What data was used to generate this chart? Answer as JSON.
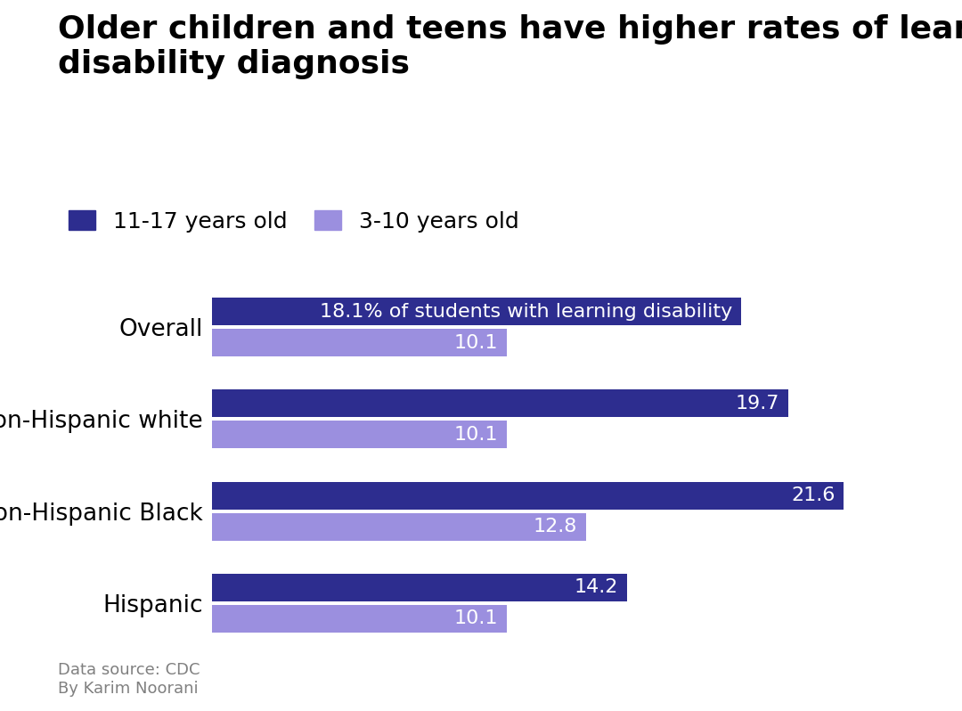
{
  "title": "Older children and teens have higher rates of learning\ndisability diagnosis",
  "categories": [
    "Overall",
    "Non-Hispanic white",
    "Non-Hispanic Black",
    "Hispanic"
  ],
  "older_values": [
    18.1,
    19.7,
    21.6,
    14.2
  ],
  "younger_values": [
    10.1,
    10.1,
    12.8,
    10.1
  ],
  "older_label": "11-17 years old",
  "younger_label": "3-10 years old",
  "older_color": "#2d2d8f",
  "younger_color": "#9b8fdf",
  "bar_height": 0.3,
  "xlim": [
    0,
    24
  ],
  "footnote": "Data source: CDC\nBy Karim Noorani",
  "overall_annotation": "18.1% of students with learning disability",
  "title_fontsize": 26,
  "label_fontsize": 19,
  "value_fontsize": 16,
  "footnote_fontsize": 13,
  "background_color": "#ffffff"
}
